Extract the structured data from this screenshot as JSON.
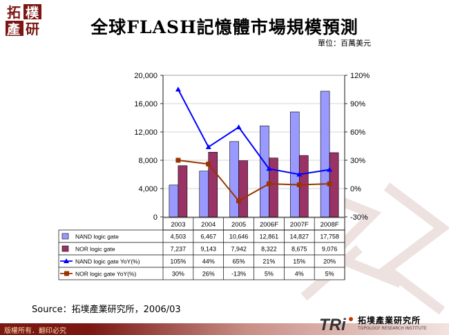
{
  "logo": {
    "line1": "拓",
    "line2": "樸",
    "line3": "產",
    "line4": "研"
  },
  "title": "全球FLASH記憶體市場規模預測",
  "unit": "單位：百萬美元",
  "source": "Source：拓墣產業研究所，2006/03",
  "footer": "版權所有．翻印必究",
  "org": {
    "name": "拓墣產業研究所",
    "sub": "TOPOLOGY RESEARCH INSTITUTE",
    "mark": "TRi"
  },
  "colors": {
    "nand_bar": "#9999ff",
    "nor_bar": "#993366",
    "nand_line": "#0000ff",
    "nor_line": "#993300",
    "footer": "#7a1713"
  },
  "chart_data": {
    "type": "bar",
    "categories": [
      "2003",
      "2004",
      "2005",
      "2006F",
      "2007F",
      "2008F"
    ],
    "series": [
      {
        "name": "NAND logic gate",
        "type": "bar",
        "axis": "left",
        "values": [
          4503,
          6467,
          10646,
          12861,
          14827,
          17758
        ],
        "labels": [
          "4,503",
          "6,467",
          "10,646",
          "12,861",
          "14,827",
          "17,758"
        ]
      },
      {
        "name": "NOR logic gate",
        "type": "bar",
        "axis": "left",
        "values": [
          7237,
          9143,
          7942,
          8322,
          8675,
          9076
        ],
        "labels": [
          "7,237",
          "9,143",
          "7,942",
          "8,322",
          "8,675",
          "9,076"
        ]
      },
      {
        "name": "NAND logic gate YoY(%)",
        "type": "line",
        "axis": "right",
        "values": [
          105,
          44,
          65,
          21,
          15,
          20
        ],
        "labels": [
          "105%",
          "44%",
          "65%",
          "21%",
          "15%",
          "20%"
        ]
      },
      {
        "name": "NOR logic gate YoY(%)",
        "type": "line",
        "axis": "right",
        "values": [
          30,
          26,
          -13,
          5,
          4,
          5
        ],
        "labels": [
          "30%",
          "26%",
          "-13%",
          "5%",
          "4%",
          "5%"
        ]
      }
    ],
    "y_left": {
      "ylim": [
        0,
        20000
      ],
      "ticks": [
        "0",
        "4,000",
        "8,000",
        "12,000",
        "16,000",
        "20,000"
      ]
    },
    "y_right": {
      "ylim": [
        -30,
        120
      ],
      "ticks": [
        "-30%",
        "0%",
        "30%",
        "60%",
        "90%",
        "120%"
      ]
    },
    "grid": true,
    "legend": "data-table"
  }
}
